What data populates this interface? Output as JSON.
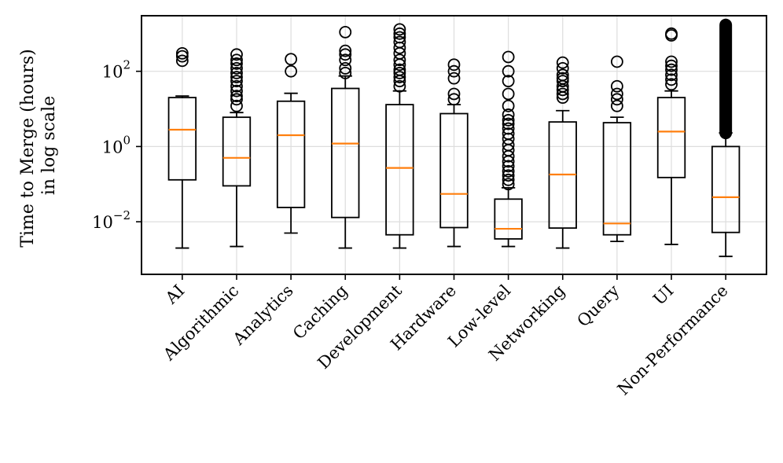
{
  "chart_data": {
    "type": "boxplot",
    "title": "",
    "xlabel": "",
    "ylabel_lines": [
      "Time to Merge (hours)",
      "in log scale"
    ],
    "yscale": "log",
    "ylim": [
      0.0004,
      3000
    ],
    "yticks": [
      {
        "value": 100,
        "base": "10",
        "exp": "2"
      },
      {
        "value": 1,
        "base": "10",
        "exp": "0"
      },
      {
        "value": 0.01,
        "base": "10",
        "exp": "−2"
      }
    ],
    "grid": true,
    "colors": {
      "box": "#000000",
      "median": "#ff7f0e",
      "grid": "#dddddd",
      "flier": "#000000"
    },
    "categories": [
      "AI",
      "Algorithmic",
      "Analytics",
      "Caching",
      "Development",
      "Hardware",
      "Low-level",
      "Networking",
      "Query",
      "UI",
      "Non-Performance"
    ],
    "series": [
      {
        "name": "AI",
        "whislo": 0.002,
        "q1": 0.13,
        "med": 2.8,
        "q3": 20,
        "whishi": 22,
        "fliers": [
          190,
          250,
          300
        ]
      },
      {
        "name": "Algorithmic",
        "whislo": 0.0022,
        "q1": 0.09,
        "med": 0.5,
        "q3": 6,
        "whishi": 8,
        "fliers": [
          12,
          18,
          22,
          30,
          40,
          55,
          70,
          90,
          120,
          160,
          200,
          280
        ]
      },
      {
        "name": "Analytics",
        "whislo": 0.005,
        "q1": 0.024,
        "med": 2.0,
        "q3": 16,
        "whishi": 26,
        "fliers": [
          100,
          210
        ]
      },
      {
        "name": "Caching",
        "whislo": 0.002,
        "q1": 0.013,
        "med": 1.2,
        "q3": 35,
        "whishi": 75,
        "fliers": [
          90,
          120,
          200,
          280,
          350,
          1100
        ]
      },
      {
        "name": "Development",
        "whislo": 0.002,
        "q1": 0.0045,
        "med": 0.27,
        "q3": 13,
        "whishi": 30,
        "fliers": [
          40,
          55,
          70,
          90,
          110,
          150,
          200,
          300,
          420,
          600,
          800,
          1000,
          1300
        ]
      },
      {
        "name": "Hardware",
        "whislo": 0.0022,
        "q1": 0.007,
        "med": 0.055,
        "q3": 7.5,
        "whishi": 13,
        "fliers": [
          18,
          25,
          65,
          100,
          150
        ]
      },
      {
        "name": "Low-level",
        "whislo": 0.0022,
        "q1": 0.0035,
        "med": 0.0065,
        "q3": 0.04,
        "whishi": 0.08,
        "fliers": [
          0.1,
          0.13,
          0.17,
          0.22,
          0.3,
          0.4,
          0.55,
          0.8,
          1.1,
          1.6,
          2.2,
          3,
          4,
          5,
          7,
          12,
          25,
          55,
          100,
          240
        ]
      },
      {
        "name": "Networking",
        "whislo": 0.002,
        "q1": 0.0068,
        "med": 0.18,
        "q3": 4.5,
        "whishi": 9,
        "fliers": [
          20,
          25,
          32,
          40,
          55,
          65,
          80,
          120,
          170
        ]
      },
      {
        "name": "Query",
        "whislo": 0.003,
        "q1": 0.0045,
        "med": 0.009,
        "q3": 4.3,
        "whishi": 6,
        "fliers": [
          12,
          18,
          25,
          40,
          180
        ]
      },
      {
        "name": "UI",
        "whislo": 0.0025,
        "q1": 0.15,
        "med": 2.5,
        "q3": 20,
        "whishi": 30,
        "fliers": [
          45,
          60,
          80,
          110,
          140,
          180,
          900,
          1000
        ]
      },
      {
        "name": "Non-Performance",
        "whislo": 0.0012,
        "q1": 0.0052,
        "med": 0.045,
        "q3": 1.0,
        "whishi": 2.3,
        "fliers": [],
        "dense_flier_range": [
          2.3,
          1700
        ]
      }
    ]
  }
}
